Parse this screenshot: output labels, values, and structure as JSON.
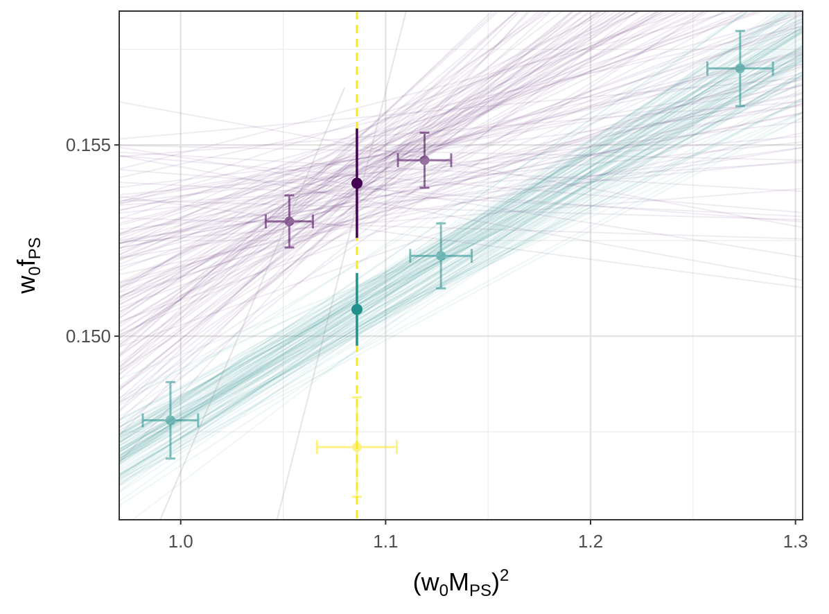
{
  "chart_data": {
    "type": "scatter",
    "title": "",
    "xlabel": {
      "base": "(w",
      "sub1": "0",
      "mid": "M",
      "sub2": "PS",
      "close": ")",
      "sup": "2"
    },
    "ylabel": {
      "base": "w",
      "sub1": "0",
      "mid": "f",
      "sub2": "PS"
    },
    "xlim": [
      0.97,
      1.3035
    ],
    "ylim": [
      0.1452,
      0.1585
    ],
    "x_ticks": [
      1.0,
      1.1,
      1.2,
      1.3
    ],
    "x_tick_labels": [
      "1.0",
      "1.1",
      "1.2",
      "1.3"
    ],
    "y_ticks": [
      0.15,
      0.155
    ],
    "y_tick_labels": [
      "0.150",
      "0.155"
    ],
    "grid": true,
    "reference_line": {
      "x": 1.086,
      "color": "#FDE725",
      "style": "dashed"
    },
    "colors": {
      "purple": "#440154",
      "teal": "#21908C",
      "yellow": "#FDE725"
    },
    "series": [
      {
        "name": "purple",
        "color": "#440154",
        "points": [
          {
            "x": 1.053,
            "y": 0.153,
            "xerr": 0.0115,
            "yerr": 0.00068
          },
          {
            "x": 1.119,
            "y": 0.1546,
            "xerr": 0.013,
            "yerr": 0.00072
          }
        ],
        "interpolated": {
          "x": 1.086,
          "y": 0.154,
          "yerr": 0.00143
        },
        "band": {
          "n": 120,
          "slope_mean": 0.0242,
          "slope_sd": 0.0165
        }
      },
      {
        "name": "teal",
        "color": "#21908C",
        "points": [
          {
            "x": 0.995,
            "y": 0.1478,
            "xerr": 0.0135,
            "yerr": 0.001
          },
          {
            "x": 1.127,
            "y": 0.1521,
            "xerr": 0.015,
            "yerr": 0.00085
          },
          {
            "x": 1.273,
            "y": 0.157,
            "xerr": 0.016,
            "yerr": 0.00098
          }
        ],
        "interpolated": {
          "x": 1.086,
          "y": 0.1507,
          "yerr": 0.00095
        },
        "band": {
          "n": 100,
          "slope_mean": 0.032,
          "slope_sd": 0.0032
        }
      },
      {
        "name": "yellow",
        "color": "#FDE725",
        "points": [
          {
            "x": 1.086,
            "y": 0.1471,
            "xerr": 0.0195,
            "yerr": 0.0013
          }
        ]
      }
    ]
  }
}
